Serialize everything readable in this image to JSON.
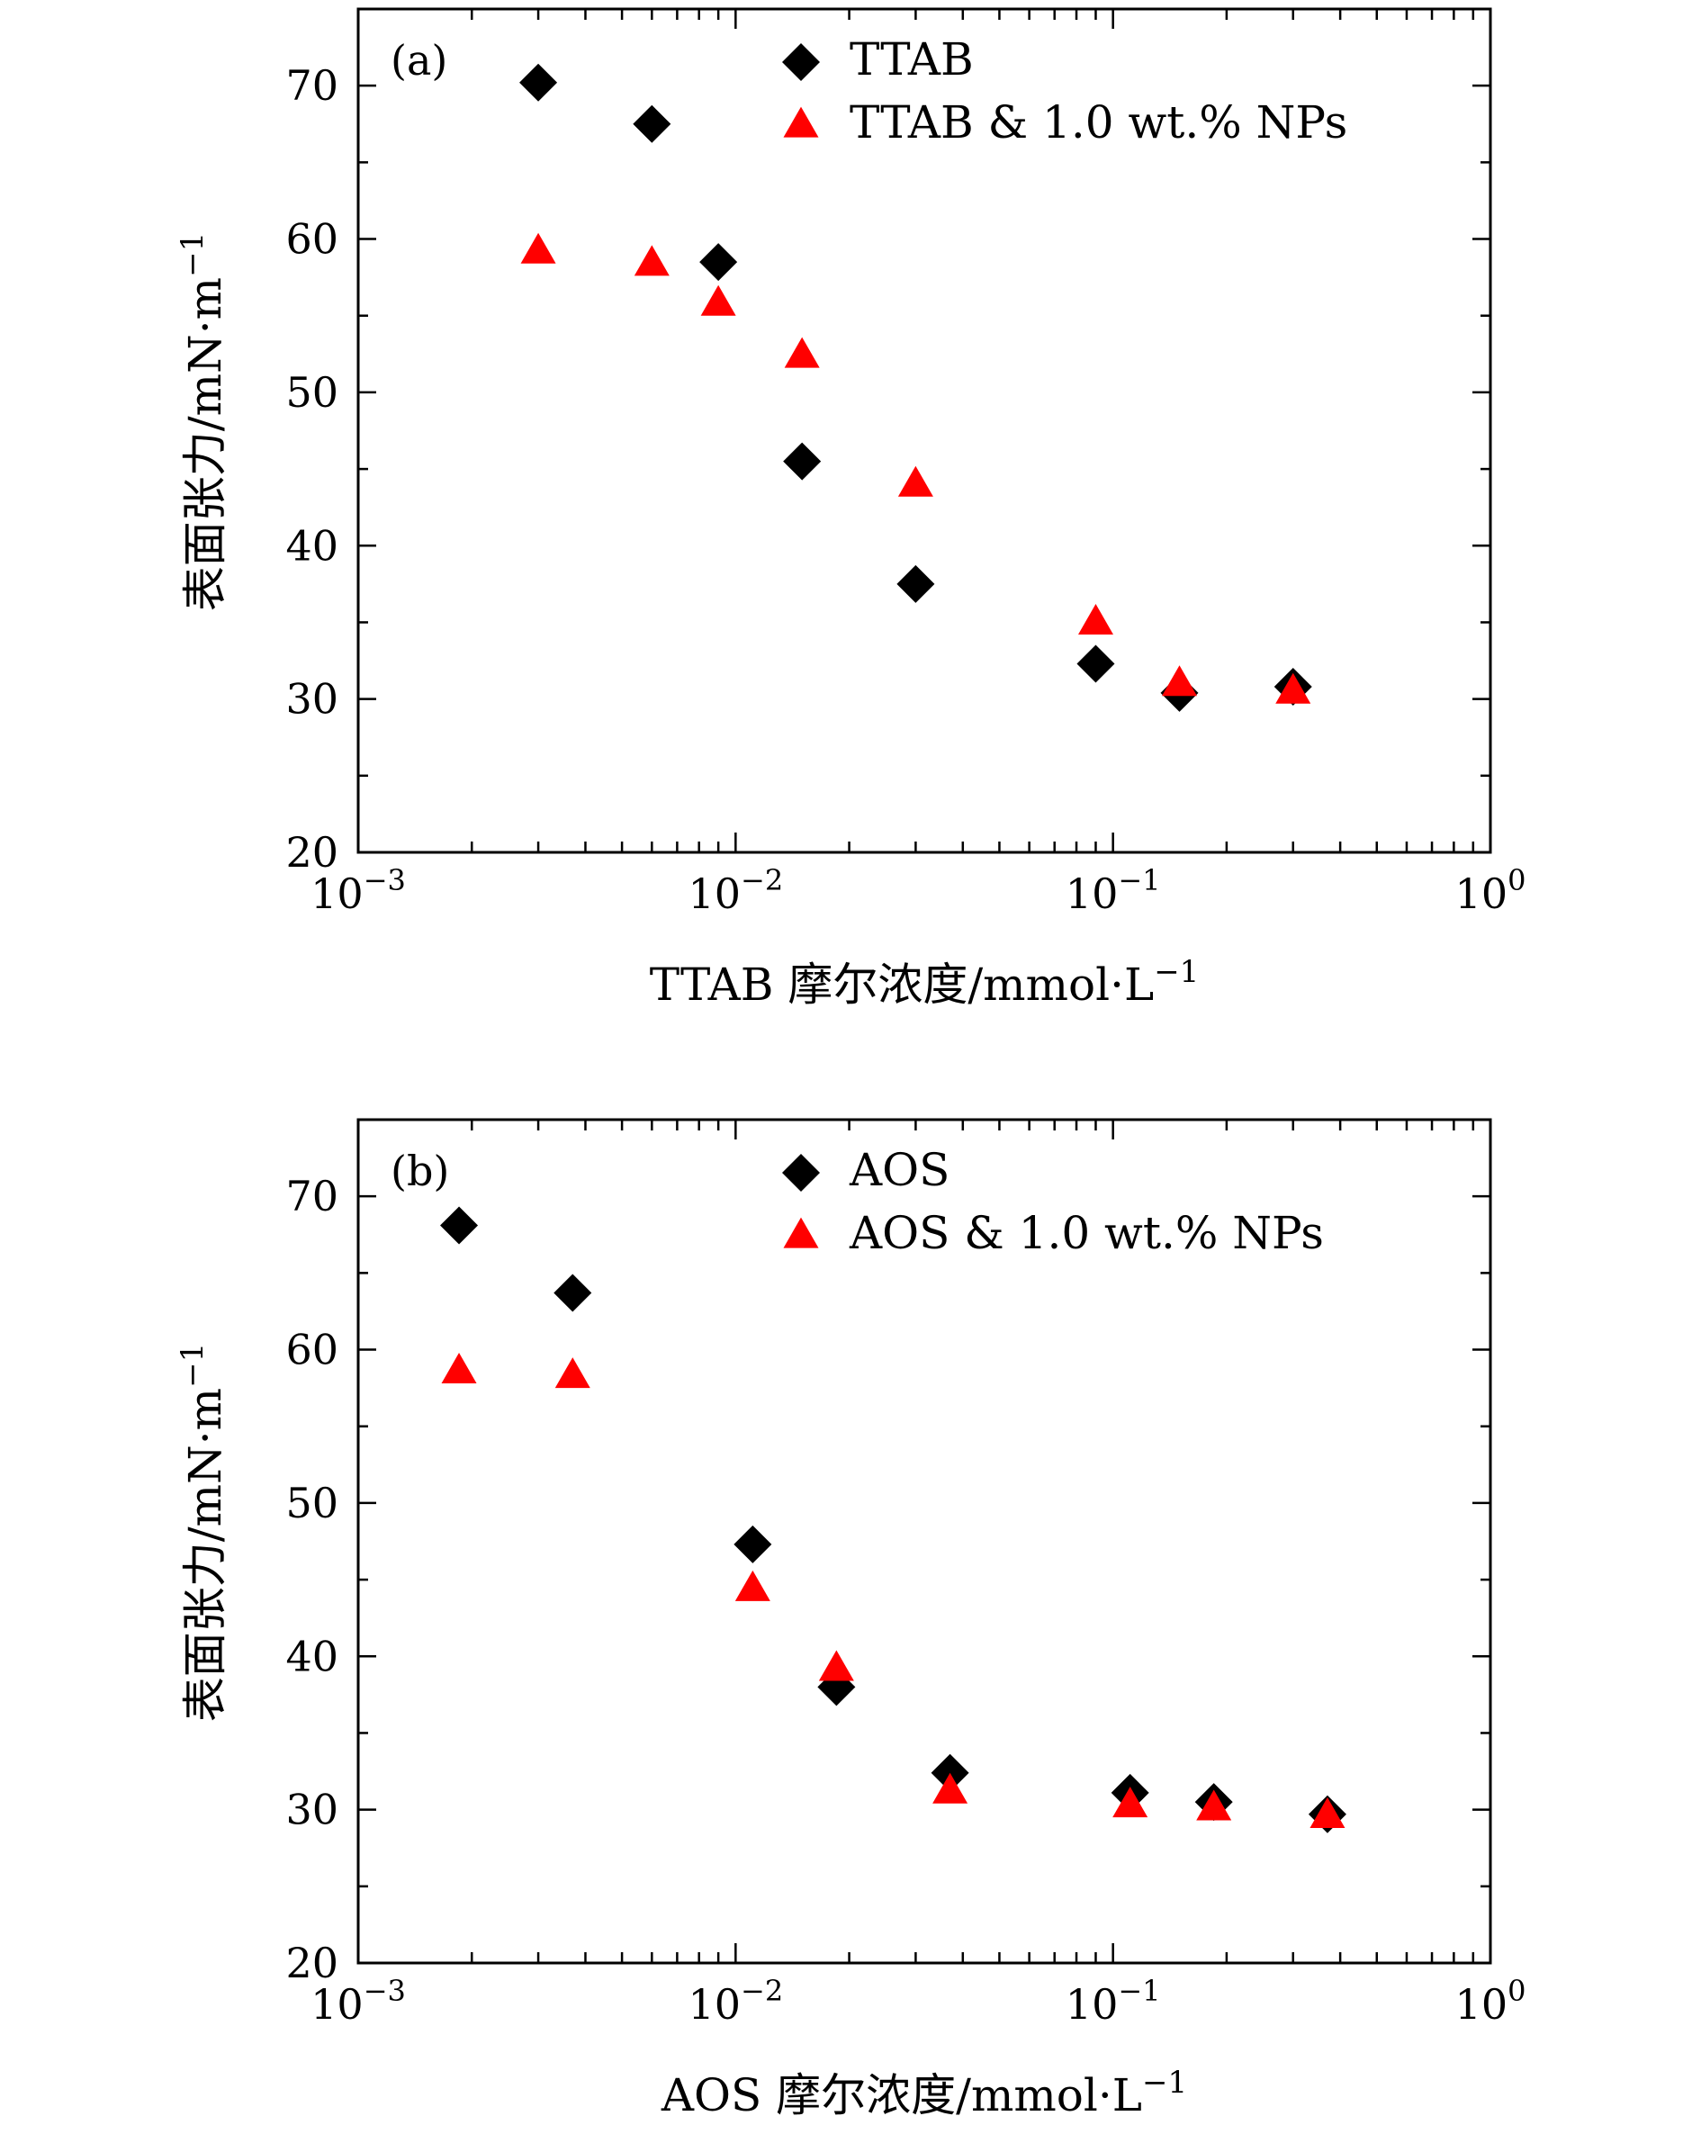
{
  "chart_data": [
    {
      "type": "scatter",
      "panel_label": "(a)",
      "xscale": "log",
      "xlim": [
        0.001,
        1
      ],
      "ylim": [
        20,
        75
      ],
      "x_ticks": [
        {
          "value": 0.001,
          "base": "10",
          "exp": "−3"
        },
        {
          "value": 0.01,
          "base": "10",
          "exp": "−2"
        },
        {
          "value": 0.1,
          "base": "10",
          "exp": "−1"
        },
        {
          "value": 1,
          "base": "10",
          "exp": "0"
        }
      ],
      "y_ticks": [
        20,
        30,
        40,
        50,
        60,
        70
      ],
      "xlabel": {
        "text": "TTAB 摩尔浓度/mmol·L",
        "sup": "−1"
      },
      "ylabel": {
        "text": "表面张力/mN·m",
        "sup": "−1"
      },
      "legend_position": "top-right",
      "series": [
        {
          "name": "TTAB",
          "marker": "diamond",
          "color": "#000000",
          "x": [
            0.003,
            0.006,
            0.009,
            0.015,
            0.03,
            0.09,
            0.15,
            0.3
          ],
          "y": [
            70.2,
            67.5,
            58.5,
            45.5,
            37.5,
            32.3,
            30.4,
            30.8
          ]
        },
        {
          "name": "TTAB & 1.0 wt.% NPs",
          "marker": "triangle",
          "color": "#ff0000",
          "x": [
            0.003,
            0.006,
            0.009,
            0.015,
            0.03,
            0.09,
            0.15,
            0.3
          ],
          "y": [
            59.2,
            58.4,
            55.8,
            52.4,
            44.0,
            35.0,
            31.0,
            30.5
          ]
        }
      ]
    },
    {
      "type": "scatter",
      "panel_label": "(b)",
      "xscale": "log",
      "xlim": [
        0.001,
        1
      ],
      "ylim": [
        20,
        75
      ],
      "x_ticks": [
        {
          "value": 0.001,
          "base": "10",
          "exp": "−3"
        },
        {
          "value": 0.01,
          "base": "10",
          "exp": "−2"
        },
        {
          "value": 0.1,
          "base": "10",
          "exp": "−1"
        },
        {
          "value": 1,
          "base": "10",
          "exp": "0"
        }
      ],
      "y_ticks": [
        20,
        30,
        40,
        50,
        60,
        70
      ],
      "xlabel": {
        "text": "AOS 摩尔浓度/mmol·L",
        "sup": "−1"
      },
      "ylabel": {
        "text": "表面张力/mN·m",
        "sup": "−1"
      },
      "legend_position": "top-right",
      "series": [
        {
          "name": "AOS",
          "marker": "diamond",
          "color": "#000000",
          "x": [
            0.00185,
            0.0037,
            0.0111,
            0.0185,
            0.037,
            0.111,
            0.185,
            0.37
          ],
          "y": [
            68.1,
            63.7,
            47.3,
            38.0,
            32.4,
            31.1,
            30.5,
            29.7
          ]
        },
        {
          "name": "AOS & 1.0 wt.% NPs",
          "marker": "triangle",
          "color": "#ff0000",
          "x": [
            0.00185,
            0.0037,
            0.0111,
            0.0185,
            0.037,
            0.111,
            0.185,
            0.37
          ],
          "y": [
            58.6,
            58.3,
            44.4,
            39.2,
            31.2,
            30.3,
            30.1,
            29.6
          ]
        }
      ]
    }
  ]
}
